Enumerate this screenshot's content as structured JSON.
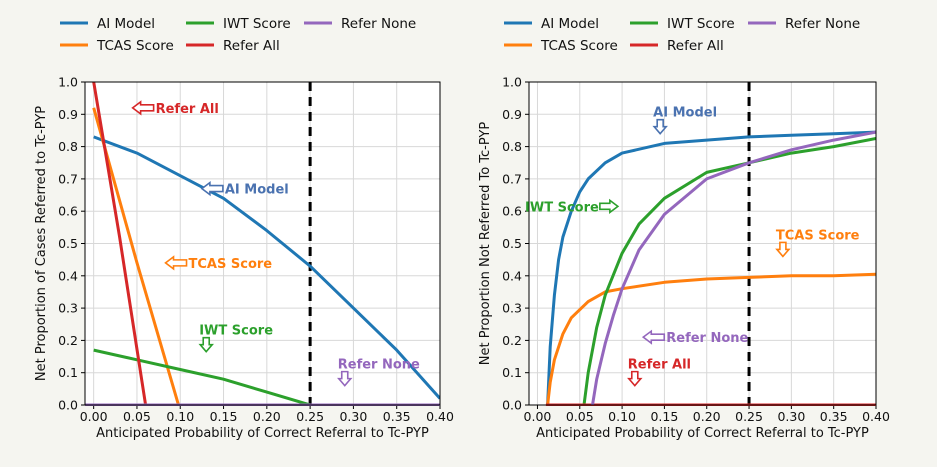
{
  "chart_data": [
    {
      "type": "line",
      "xlabel": "Anticipated Probability of Correct Referral to Tc-PYP",
      "ylabel": "Net Proportion of Cases Referred to Tc-PYP",
      "xlim": [
        -0.01,
        0.4
      ],
      "ylim": [
        0.0,
        1.0
      ],
      "xticks": [
        0.0,
        0.05,
        0.1,
        0.15,
        0.2,
        0.25,
        0.3,
        0.35,
        0.4
      ],
      "xtick_labels": [
        "0.00",
        "0.05",
        "0.10",
        "0.15",
        "0.20",
        "0.25",
        "0.30",
        "0.35",
        "0.40"
      ],
      "yticks": [
        0.0,
        0.1,
        0.2,
        0.3,
        0.4,
        0.5,
        0.6,
        0.7,
        0.8,
        0.9,
        1.0
      ],
      "ytick_labels": [
        "0.0",
        "0.1",
        "0.2",
        "0.3",
        "0.4",
        "0.5",
        "0.6",
        "0.7",
        "0.8",
        "0.9",
        "1.0"
      ],
      "grid": true,
      "legend_position": "above",
      "legend": [
        "AI Model",
        "TCAS Score",
        "IWT Score",
        "Refer All",
        "Refer None"
      ],
      "threshold_line_x": 0.25,
      "series": [
        {
          "name": "AI Model",
          "color": "#1f77b4",
          "x": [
            0.0,
            0.05,
            0.1,
            0.15,
            0.2,
            0.25,
            0.3,
            0.35,
            0.4
          ],
          "y": [
            0.83,
            0.78,
            0.71,
            0.64,
            0.54,
            0.43,
            0.3,
            0.17,
            0.02
          ]
        },
        {
          "name": "TCAS Score",
          "color": "#ff7f0e",
          "x": [
            0.0,
            0.05,
            0.098
          ],
          "y": [
            0.92,
            0.44,
            0.0
          ]
        },
        {
          "name": "IWT Score",
          "color": "#2ca02c",
          "x": [
            0.0,
            0.05,
            0.1,
            0.15,
            0.2,
            0.25
          ],
          "y": [
            0.17,
            0.14,
            0.11,
            0.08,
            0.04,
            0.0
          ]
        },
        {
          "name": "Refer All",
          "color": "#d62728",
          "x": [
            0.0,
            0.03,
            0.06
          ],
          "y": [
            1.0,
            0.52,
            0.0
          ]
        },
        {
          "name": "Refer None",
          "color": "#9467bd",
          "x": [
            -0.01,
            0.4
          ],
          "y": [
            0.0,
            0.0
          ]
        }
      ],
      "annotations": [
        {
          "text": "Refer All",
          "color": "#d62728",
          "x": 0.045,
          "y": 0.92,
          "arrow": "left"
        },
        {
          "text": "AI Model",
          "color": "#4a72b0",
          "x": 0.125,
          "y": 0.67,
          "arrow": "left"
        },
        {
          "text": "TCAS Score",
          "color": "#ff7f0e",
          "x": 0.083,
          "y": 0.44,
          "arrow": "left"
        },
        {
          "text": "IWT Score",
          "color": "#2ca02c",
          "x": 0.13,
          "y": 0.165,
          "arrow": "down"
        },
        {
          "text": "Refer None",
          "color": "#9467bd",
          "x": 0.29,
          "y": 0.06,
          "arrow": "down"
        }
      ]
    },
    {
      "type": "line",
      "xlabel": "Anticipated Probability of Correct Referral to Tc-PYP",
      "ylabel": "Net Proportion Not Referred To Tc-PYP",
      "xlim": [
        -0.01,
        0.4
      ],
      "ylim": [
        0.0,
        1.0
      ],
      "xticks": [
        0.0,
        0.05,
        0.1,
        0.15,
        0.2,
        0.25,
        0.3,
        0.35,
        0.4
      ],
      "xtick_labels": [
        "0.00",
        "0.05",
        "0.10",
        "0.15",
        "0.20",
        "0.25",
        "0.30",
        "0.35",
        "0.40"
      ],
      "yticks": [
        0.0,
        0.1,
        0.2,
        0.3,
        0.4,
        0.5,
        0.6,
        0.7,
        0.8,
        0.9,
        1.0
      ],
      "ytick_labels": [
        "0.0",
        "0.1",
        "0.2",
        "0.3",
        "0.4",
        "0.5",
        "0.6",
        "0.7",
        "0.8",
        "0.9",
        "1.0"
      ],
      "grid": true,
      "legend_position": "above",
      "legend": [
        "AI Model",
        "TCAS Score",
        "IWT Score",
        "Refer All",
        "Refer None"
      ],
      "threshold_line_x": 0.25,
      "series": [
        {
          "name": "AI Model",
          "color": "#1f77b4",
          "x": [
            0.012,
            0.015,
            0.02,
            0.025,
            0.03,
            0.04,
            0.05,
            0.06,
            0.08,
            0.1,
            0.15,
            0.2,
            0.25,
            0.3,
            0.35,
            0.4
          ],
          "y": [
            0.0,
            0.18,
            0.34,
            0.45,
            0.52,
            0.6,
            0.66,
            0.7,
            0.75,
            0.78,
            0.81,
            0.82,
            0.83,
            0.835,
            0.84,
            0.845
          ]
        },
        {
          "name": "TCAS Score",
          "color": "#ff7f0e",
          "x": [
            0.012,
            0.015,
            0.02,
            0.03,
            0.04,
            0.06,
            0.08,
            0.1,
            0.15,
            0.2,
            0.25,
            0.3,
            0.35,
            0.4
          ],
          "y": [
            0.0,
            0.07,
            0.14,
            0.22,
            0.27,
            0.32,
            0.35,
            0.36,
            0.38,
            0.39,
            0.395,
            0.4,
            0.4,
            0.405
          ]
        },
        {
          "name": "IWT Score",
          "color": "#2ca02c",
          "x": [
            0.055,
            0.06,
            0.07,
            0.08,
            0.1,
            0.12,
            0.15,
            0.2,
            0.25,
            0.3,
            0.35,
            0.4
          ],
          "y": [
            0.0,
            0.1,
            0.24,
            0.34,
            0.47,
            0.56,
            0.64,
            0.72,
            0.75,
            0.78,
            0.8,
            0.825
          ]
        },
        {
          "name": "Refer All",
          "color": "#d62728",
          "x": [
            0.01,
            0.4
          ],
          "y": [
            0.0,
            0.0
          ]
        },
        {
          "name": "Refer None",
          "color": "#9467bd",
          "x": [
            0.065,
            0.07,
            0.08,
            0.09,
            0.1,
            0.12,
            0.15,
            0.2,
            0.25,
            0.3,
            0.35,
            0.4
          ],
          "y": [
            0.0,
            0.08,
            0.19,
            0.28,
            0.36,
            0.48,
            0.59,
            0.7,
            0.75,
            0.79,
            0.82,
            0.845
          ]
        }
      ],
      "annotations": [
        {
          "text": "AI Model",
          "color": "#4a72b0",
          "x": 0.145,
          "y": 0.84,
          "arrow": "down"
        },
        {
          "text": "IWT Score",
          "color": "#2ca02c",
          "x": 0.095,
          "y": 0.615,
          "arrow": "right"
        },
        {
          "text": "TCAS Score",
          "color": "#ff7f0e",
          "x": 0.29,
          "y": 0.46,
          "arrow": "down"
        },
        {
          "text": "Refer None",
          "color": "#9467bd",
          "x": 0.125,
          "y": 0.21,
          "arrow": "left"
        },
        {
          "text": "Refer All",
          "color": "#d62728",
          "x": 0.115,
          "y": 0.06,
          "arrow": "down"
        }
      ]
    }
  ]
}
